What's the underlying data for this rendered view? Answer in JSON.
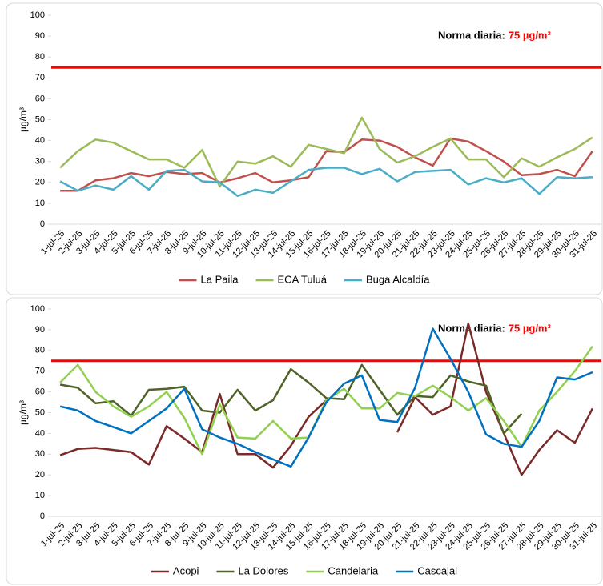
{
  "chart_data": [
    {
      "type": "line",
      "y_label": "µg/m³",
      "categories": [
        "1-jul-25",
        "2-jul-25",
        "3-jul-25",
        "4-jul-25",
        "5-jul-25",
        "6-jul-25",
        "7-jul-25",
        "8-jul-25",
        "9-jul-25",
        "10-jul-25",
        "11-jul-25",
        "12-jul-25",
        "13-jul-25",
        "14-jul-25",
        "15-jul-25",
        "16-jul-25",
        "17-jul-25",
        "18-jul-25",
        "19-jul-25",
        "20-jul-25",
        "21-jul-25",
        "22-jul-25",
        "23-jul-25",
        "24-jul-25",
        "25-jul-25",
        "26-jul-25",
        "27-jul-25",
        "28-jul-25",
        "29-jul-25",
        "30-jul-25",
        "31-jul-25"
      ],
      "series": [
        {
          "name": "La Paila",
          "color": "#c0504d",
          "values": [
            16,
            16,
            21,
            22,
            24.5,
            23,
            25,
            24,
            24.5,
            20,
            22,
            24.5,
            20,
            21,
            22.5,
            35,
            34.5,
            40.5,
            40,
            37,
            32,
            28,
            41,
            39.5,
            35,
            30,
            23.5,
            24,
            26,
            23,
            35
          ]
        },
        {
          "name": "ECA Tuluá",
          "color": "#9bbb59",
          "values": [
            27,
            35,
            40.5,
            39,
            35,
            31,
            31,
            27,
            35.5,
            18,
            30,
            29,
            32.5,
            27.5,
            38,
            36,
            34,
            51,
            36,
            29.5,
            32.5,
            37,
            41,
            31,
            31,
            22.5,
            31.5,
            27.5,
            32,
            36,
            41.5
          ]
        },
        {
          "name": "Buga Alcaldía",
          "color": "#4bacc6",
          "values": [
            20.5,
            16,
            18.5,
            16.5,
            23,
            16.5,
            25.5,
            26,
            20.5,
            20,
            13.5,
            16.5,
            15,
            20.5,
            26,
            27,
            27,
            24,
            26.5,
            20.5,
            25,
            25.5,
            26,
            19,
            22,
            20,
            22,
            14.5,
            22.5,
            22,
            22.5
          ]
        }
      ],
      "reference_line": {
        "value": 75,
        "color": "#ff0000"
      },
      "annotation": "Norma diaria:",
      "annotation_value": "75 µg/m³",
      "ylim": [
        0,
        100
      ],
      "yticks": [
        0,
        10,
        20,
        30,
        40,
        50,
        60,
        70,
        80,
        90,
        100
      ],
      "grid": false,
      "legend": "bottom"
    },
    {
      "type": "line",
      "y_label": "µg/m³",
      "categories": [
        "1-jul-25",
        "2-jul-25",
        "3-jul-25",
        "4-jul-25",
        "5-jul-25",
        "6-jul-25",
        "7-jul-25",
        "8-jul-25",
        "9-jul-25",
        "10-jul-25",
        "11-jul-25",
        "12-jul-25",
        "13-jul-25",
        "14-jul-25",
        "15-jul-25",
        "16-jul-25",
        "17-jul-25",
        "18-jul-25",
        "19-jul-25",
        "20-jul-25",
        "21-jul-25",
        "22-jul-25",
        "23-jul-25",
        "24-jul-25",
        "25-jul-25",
        "26-jul-25",
        "27-jul-25",
        "28-jul-25",
        "29-jul-25",
        "30-jul-25",
        "31-jul-25"
      ],
      "series": [
        {
          "name": "Acopi",
          "color": "#7b2a2a",
          "values": [
            29.5,
            32.5,
            33,
            32,
            31,
            25,
            43.5,
            37.5,
            31,
            59,
            30,
            30,
            23.5,
            34,
            48,
            56,
            null,
            null,
            null,
            40.5,
            57.5,
            49,
            53,
            93,
            60,
            40,
            20,
            32,
            41.5,
            35.5,
            52
          ]
        },
        {
          "name": "La Dolores",
          "color": "#4f6228",
          "values": [
            63.5,
            62,
            54.5,
            55.5,
            48.5,
            61,
            61.5,
            62.5,
            51,
            50,
            61,
            51,
            56,
            71,
            64.5,
            57,
            56.5,
            73,
            61,
            49,
            58,
            57.5,
            68,
            65,
            63,
            40,
            49.5,
            null,
            null,
            null,
            null
          ]
        },
        {
          "name": "Candelaria",
          "color": "#92d050",
          "values": [
            64.5,
            73,
            60,
            53,
            48,
            53,
            60,
            47.5,
            30,
            54,
            38,
            37.5,
            46,
            37.5,
            38,
            56,
            61.5,
            52,
            52,
            59.5,
            58,
            63,
            57.5,
            51,
            57,
            46,
            33.5,
            51,
            60,
            70,
            82
          ]
        },
        {
          "name": "Cascajal",
          "color": "#0070c0",
          "values": [
            53,
            51,
            46,
            43,
            40,
            46,
            52,
            61.5,
            42,
            38,
            35,
            31,
            27.5,
            24,
            38,
            55,
            64,
            68,
            46.5,
            45.5,
            62,
            90.5,
            76,
            60,
            39.5,
            35,
            33.5,
            46,
            67,
            66,
            69.5
          ]
        }
      ],
      "reference_line": {
        "value": 75,
        "color": "#ff0000"
      },
      "annotation": "Norma diaria:",
      "annotation_value": "75 µg/m³",
      "ylim": [
        0,
        100
      ],
      "yticks": [
        0,
        10,
        20,
        30,
        40,
        50,
        60,
        70,
        80,
        90,
        100
      ],
      "grid": false,
      "legend": "bottom"
    }
  ]
}
